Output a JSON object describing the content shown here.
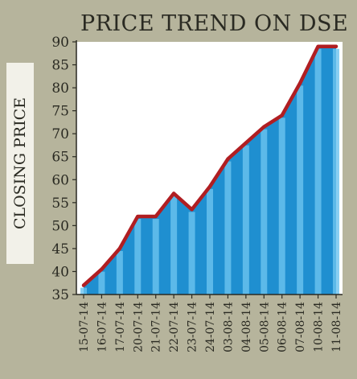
{
  "chart_data": {
    "type": "area",
    "title": "PRICE TREND ON DSE",
    "xlabel": "",
    "ylabel": "CLOSING PRICE",
    "ylim": [
      35,
      90
    ],
    "yticks": [
      35,
      40,
      45,
      50,
      55,
      60,
      65,
      70,
      75,
      80,
      85,
      90
    ],
    "categories": [
      "15-07-14",
      "16-07-14",
      "17-07-14",
      "20-07-14",
      "21-07-14",
      "22-07-14",
      "23-07-14",
      "24-07-14",
      "03-08-14",
      "04-08-14",
      "05-08-14",
      "06-08-14",
      "07-08-14",
      "10-08-14",
      "11-08-14"
    ],
    "values": [
      37,
      40.5,
      45,
      52,
      52,
      57,
      53.5,
      58.5,
      64.5,
      68,
      71.5,
      74,
      81,
      89,
      89
    ],
    "grid": false,
    "legend": "none",
    "colors": {
      "background": "#b6b49c",
      "plot_background": "#ffffff",
      "fill": "#1f8fd0",
      "stripe": "#6cc3ef",
      "line": "#b01e22",
      "text": "#2a2a22"
    }
  }
}
